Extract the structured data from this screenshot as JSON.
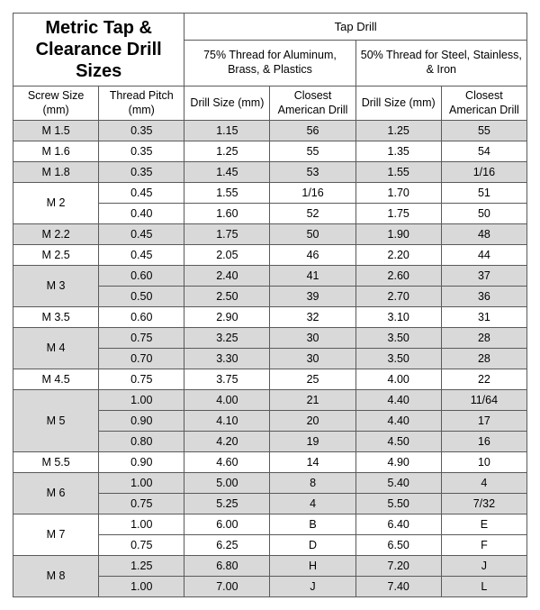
{
  "title": "Metric Tap & Clearance Drill Sizes",
  "headers": {
    "tapDrill": "Tap Drill",
    "group75": "75% Thread for Aluminum, Brass, & Plastics",
    "group50": "50% Thread for Steel, Stainless, & Iron",
    "colScrewSize": "Screw Size (mm)",
    "colThreadPitch": "Thread Pitch (mm)",
    "colDrillSize75": "Drill Size (mm)",
    "colClosest75": "Closest American Drill",
    "colDrillSize50": "Drill Size (mm)",
    "colClosest50": "Closest American Drill"
  },
  "colors": {
    "shade": "#d9d9d9",
    "border": "#5a5a5a",
    "bg": "#ffffff"
  },
  "screwGroups": [
    {
      "name": "M 1.5",
      "shaded": true,
      "rows": [
        {
          "pitch": "0.35",
          "d75": "1.15",
          "a75": "56",
          "d50": "1.25",
          "a50": "55"
        }
      ]
    },
    {
      "name": "M 1.6",
      "shaded": false,
      "rows": [
        {
          "pitch": "0.35",
          "d75": "1.25",
          "a75": "55",
          "d50": "1.35",
          "a50": "54"
        }
      ]
    },
    {
      "name": "M 1.8",
      "shaded": true,
      "rows": [
        {
          "pitch": "0.35",
          "d75": "1.45",
          "a75": "53",
          "d50": "1.55",
          "a50": "1/16"
        }
      ]
    },
    {
      "name": "M 2",
      "shaded": false,
      "rows": [
        {
          "pitch": "0.45",
          "d75": "1.55",
          "a75": "1/16",
          "d50": "1.70",
          "a50": "51"
        },
        {
          "pitch": "0.40",
          "d75": "1.60",
          "a75": "52",
          "d50": "1.75",
          "a50": "50"
        }
      ]
    },
    {
      "name": "M 2.2",
      "shaded": true,
      "rows": [
        {
          "pitch": "0.45",
          "d75": "1.75",
          "a75": "50",
          "d50": "1.90",
          "a50": "48"
        }
      ]
    },
    {
      "name": "M 2.5",
      "shaded": false,
      "rows": [
        {
          "pitch": "0.45",
          "d75": "2.05",
          "a75": "46",
          "d50": "2.20",
          "a50": "44"
        }
      ]
    },
    {
      "name": "M 3",
      "shaded": true,
      "rows": [
        {
          "pitch": "0.60",
          "d75": "2.40",
          "a75": "41",
          "d50": "2.60",
          "a50": "37"
        },
        {
          "pitch": "0.50",
          "d75": "2.50",
          "a75": "39",
          "d50": "2.70",
          "a50": "36"
        }
      ]
    },
    {
      "name": "M 3.5",
      "shaded": false,
      "rows": [
        {
          "pitch": "0.60",
          "d75": "2.90",
          "a75": "32",
          "d50": "3.10",
          "a50": "31"
        }
      ]
    },
    {
      "name": "M 4",
      "shaded": true,
      "rows": [
        {
          "pitch": "0.75",
          "d75": "3.25",
          "a75": "30",
          "d50": "3.50",
          "a50": "28"
        },
        {
          "pitch": "0.70",
          "d75": "3.30",
          "a75": "30",
          "d50": "3.50",
          "a50": "28"
        }
      ]
    },
    {
      "name": "M 4.5",
      "shaded": false,
      "rows": [
        {
          "pitch": "0.75",
          "d75": "3.75",
          "a75": "25",
          "d50": "4.00",
          "a50": "22"
        }
      ]
    },
    {
      "name": "M 5",
      "shaded": true,
      "rows": [
        {
          "pitch": "1.00",
          "d75": "4.00",
          "a75": "21",
          "d50": "4.40",
          "a50": "11/64"
        },
        {
          "pitch": "0.90",
          "d75": "4.10",
          "a75": "20",
          "d50": "4.40",
          "a50": "17"
        },
        {
          "pitch": "0.80",
          "d75": "4.20",
          "a75": "19",
          "d50": "4.50",
          "a50": "16"
        }
      ]
    },
    {
      "name": "M 5.5",
      "shaded": false,
      "rows": [
        {
          "pitch": "0.90",
          "d75": "4.60",
          "a75": "14",
          "d50": "4.90",
          "a50": "10"
        }
      ]
    },
    {
      "name": "M 6",
      "shaded": true,
      "rows": [
        {
          "pitch": "1.00",
          "d75": "5.00",
          "a75": "8",
          "d50": "5.40",
          "a50": "4"
        },
        {
          "pitch": "0.75",
          "d75": "5.25",
          "a75": "4",
          "d50": "5.50",
          "a50": "7/32"
        }
      ]
    },
    {
      "name": "M 7",
      "shaded": false,
      "rows": [
        {
          "pitch": "1.00",
          "d75": "6.00",
          "a75": "B",
          "d50": "6.40",
          "a50": "E"
        },
        {
          "pitch": "0.75",
          "d75": "6.25",
          "a75": "D",
          "d50": "6.50",
          "a50": "F"
        }
      ]
    },
    {
      "name": "M 8",
      "shaded": true,
      "rows": [
        {
          "pitch": "1.25",
          "d75": "6.80",
          "a75": "H",
          "d50": "7.20",
          "a50": "J"
        },
        {
          "pitch": "1.00",
          "d75": "7.00",
          "a75": "J",
          "d50": "7.40",
          "a50": "L"
        }
      ]
    }
  ]
}
